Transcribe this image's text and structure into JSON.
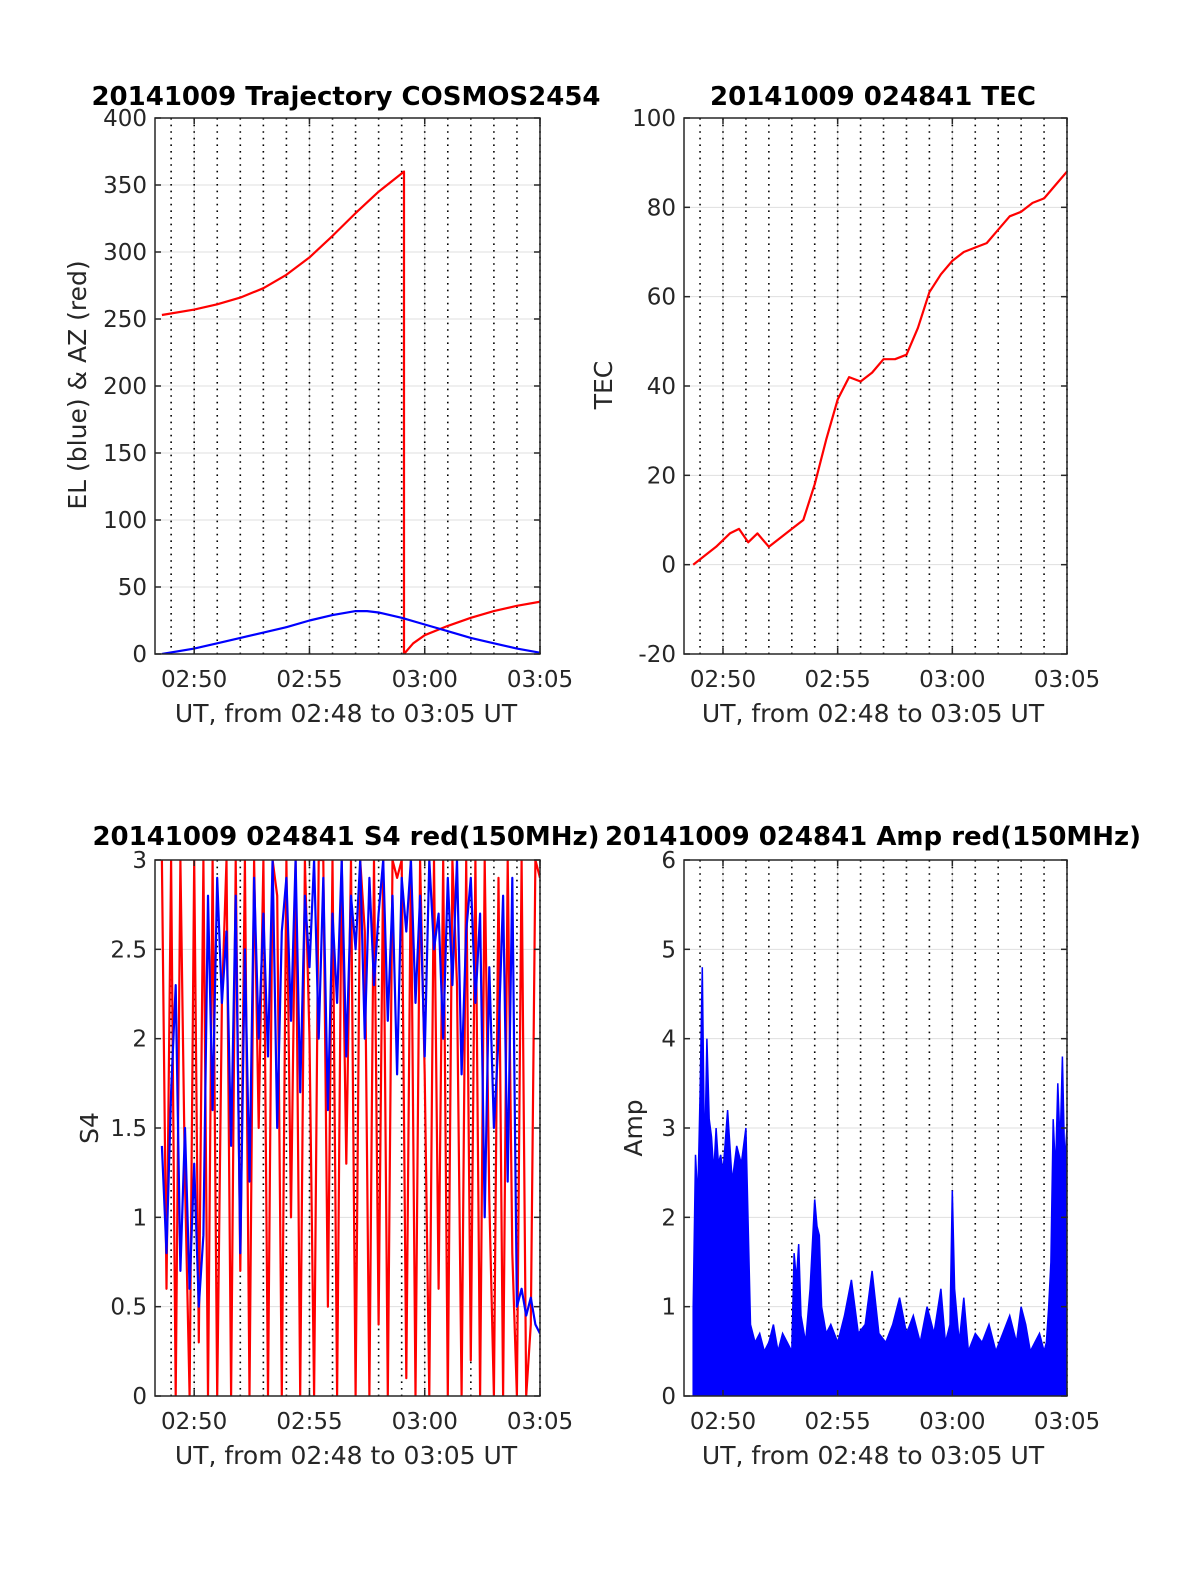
{
  "chart_data": [
    {
      "type": "line",
      "title": "20141009 Trajectory COSMOS2454",
      "xlabel": "UT, from 02:48 to 03:05 UT",
      "ylabel": "EL (blue) & AZ (red)",
      "xlim": [
        168.3,
        185
      ],
      "ylim": [
        0,
        400
      ],
      "xticks": [
        170,
        175,
        180,
        185
      ],
      "xticklabels": [
        "02:50",
        "02:55",
        "03:00",
        "03:05"
      ],
      "yticks": [
        0,
        50,
        100,
        150,
        200,
        250,
        300,
        350,
        400
      ],
      "yticklabels": [
        "0",
        "50",
        "100",
        "150",
        "200",
        "250",
        "300",
        "350",
        "400"
      ],
      "grid": true,
      "series": [
        {
          "color": "#ff0000",
          "x": [
            168.6,
            170,
            171,
            172,
            173,
            174,
            175,
            176,
            177,
            178,
            179.1,
            179.1,
            179.5,
            180,
            181,
            182,
            183,
            184,
            185
          ],
          "y": [
            253,
            257,
            261,
            266,
            273,
            283,
            296,
            312,
            329,
            345,
            360,
            0,
            8,
            14,
            21,
            27,
            32,
            36,
            39
          ]
        },
        {
          "color": "#0000ff",
          "x": [
            168.6,
            170,
            171,
            172,
            173,
            174,
            175,
            176,
            177,
            177.5,
            178,
            179,
            180,
            181,
            182,
            183,
            184,
            185
          ],
          "y": [
            0,
            4,
            8,
            12,
            16,
            20,
            25,
            29,
            32,
            32,
            31,
            27,
            22,
            17,
            12,
            8,
            4,
            1
          ]
        }
      ]
    },
    {
      "type": "line",
      "title": "20141009 024841 TEC",
      "xlabel": "UT, from 02:48 to 03:05 UT",
      "ylabel": "TEC",
      "xlim": [
        168.3,
        185
      ],
      "ylim": [
        -20,
        100
      ],
      "xticks": [
        170,
        175,
        180,
        185
      ],
      "xticklabels": [
        "02:50",
        "02:55",
        "03:00",
        "03:05"
      ],
      "yticks": [
        -20,
        0,
        20,
        40,
        60,
        80,
        100
      ],
      "yticklabels": [
        "-20",
        "0",
        "20",
        "40",
        "60",
        "80",
        "100"
      ],
      "grid": true,
      "series": [
        {
          "color": "#ff0000",
          "x": [
            168.7,
            169.2,
            169.7,
            170.3,
            170.7,
            171.1,
            171.5,
            172.0,
            172.5,
            173.0,
            173.5,
            174.0,
            174.5,
            175.0,
            175.5,
            176.0,
            176.5,
            177.0,
            177.5,
            178.0,
            178.5,
            179.0,
            179.5,
            180.0,
            180.5,
            181.0,
            181.5,
            182.0,
            182.5,
            183.0,
            183.5,
            184.0,
            184.5,
            185.0
          ],
          "y": [
            0,
            2,
            4,
            7,
            8,
            5,
            7,
            4,
            6,
            8,
            10,
            18,
            28,
            37,
            42,
            41,
            43,
            46,
            46,
            47,
            53,
            61,
            65,
            68,
            70,
            71,
            72,
            75,
            78,
            79,
            81,
            82,
            85,
            88
          ]
        }
      ]
    },
    {
      "type": "line",
      "title": "20141009 024841 S4 red(150MHz)",
      "xlabel": "UT, from 02:48 to 03:05 UT",
      "ylabel": "S4",
      "xlim": [
        168.3,
        185
      ],
      "ylim": [
        0,
        3
      ],
      "xticks": [
        170,
        175,
        180,
        185
      ],
      "xticklabels": [
        "02:50",
        "02:55",
        "03:00",
        "03:05"
      ],
      "yticks": [
        0,
        0.5,
        1,
        1.5,
        2,
        2.5,
        3
      ],
      "yticklabels": [
        "0",
        "0.5",
        "1",
        "1.5",
        "2",
        "2.5",
        "3"
      ],
      "grid": true,
      "series": [
        {
          "color": "#ff0000",
          "x": [
            168.6,
            168.8,
            169.0,
            169.2,
            169.4,
            169.6,
            169.8,
            170.0,
            170.2,
            170.4,
            170.6,
            170.8,
            171.0,
            171.2,
            171.4,
            171.6,
            171.8,
            172.0,
            172.2,
            172.4,
            172.6,
            172.8,
            173.0,
            173.2,
            173.4,
            173.6,
            173.8,
            174.0,
            174.2,
            174.4,
            174.6,
            174.8,
            175.0,
            175.2,
            175.4,
            175.6,
            175.8,
            176.0,
            176.2,
            176.4,
            176.6,
            176.8,
            177.0,
            177.2,
            177.4,
            177.6,
            177.8,
            178.0,
            178.2,
            178.4,
            178.6,
            178.8,
            179.0,
            179.2,
            179.4,
            179.6,
            179.8,
            180.0,
            180.2,
            180.4,
            180.6,
            180.8,
            181.0,
            181.2,
            181.4,
            181.6,
            181.8,
            182.0,
            182.2,
            182.4,
            182.6,
            182.8,
            183.0,
            183.2,
            183.4,
            183.6,
            183.8,
            184.0,
            184.2,
            184.4,
            184.6,
            184.8,
            185.0
          ],
          "y": [
            3,
            0.6,
            3,
            0,
            3,
            1.2,
            0,
            3,
            0.3,
            3,
            0,
            3,
            0,
            2.2,
            3,
            0,
            3,
            0.7,
            3,
            0,
            3,
            1.5,
            3,
            0,
            3,
            2.8,
            0,
            3,
            1.0,
            3,
            0,
            3,
            2.0,
            0,
            3,
            3,
            0.5,
            3,
            0,
            3,
            1.3,
            3,
            0,
            3,
            2.6,
            0,
            3,
            0.4,
            3,
            0,
            3,
            2.9,
            3,
            0.1,
            3,
            0,
            3,
            1.8,
            0,
            3,
            0.6,
            3,
            0,
            3,
            2.3,
            0,
            3,
            0.2,
            3,
            0,
            3,
            1.1,
            0,
            2.9,
            0,
            3,
            0.8,
            0,
            3,
            0,
            0.4,
            3,
            2.9
          ]
        },
        {
          "color": "#0000ff",
          "x": [
            168.6,
            168.8,
            169.0,
            169.2,
            169.4,
            169.6,
            169.8,
            170.0,
            170.2,
            170.4,
            170.6,
            170.8,
            171.0,
            171.2,
            171.4,
            171.6,
            171.8,
            172.0,
            172.2,
            172.4,
            172.6,
            172.8,
            173.0,
            173.2,
            173.4,
            173.6,
            173.8,
            174.0,
            174.2,
            174.4,
            174.6,
            174.8,
            175.0,
            175.2,
            175.4,
            175.6,
            175.8,
            176.0,
            176.2,
            176.4,
            176.6,
            176.8,
            177.0,
            177.2,
            177.4,
            177.6,
            177.8,
            178.0,
            178.2,
            178.4,
            178.6,
            178.8,
            179.0,
            179.2,
            179.4,
            179.6,
            179.8,
            180.0,
            180.2,
            180.4,
            180.6,
            180.8,
            181.0,
            181.2,
            181.4,
            181.6,
            181.8,
            182.0,
            182.2,
            182.4,
            182.6,
            182.8,
            183.0,
            183.2,
            183.4,
            183.6,
            183.8,
            184.0,
            184.2,
            184.4,
            184.6,
            184.8,
            185.0
          ],
          "y": [
            1.4,
            0.8,
            1.7,
            2.3,
            0.7,
            1.5,
            0.6,
            1.3,
            0.5,
            0.9,
            2.8,
            1.6,
            2.9,
            2.2,
            2.6,
            1.4,
            2.8,
            0.8,
            2.5,
            1.2,
            2.9,
            2.0,
            2.7,
            1.9,
            3.0,
            1.5,
            2.6,
            2.9,
            2.1,
            3.0,
            1.7,
            2.8,
            2.4,
            3.0,
            2.0,
            2.9,
            1.6,
            2.7,
            2.2,
            3.0,
            1.9,
            2.8,
            2.5,
            3.0,
            2.0,
            2.9,
            2.3,
            2.7,
            3.0,
            2.1,
            2.8,
            1.8,
            2.9,
            2.6,
            3.0,
            2.2,
            2.8,
            1.9,
            3.0,
            2.5,
            2.7,
            2.0,
            2.9,
            2.3,
            3.0,
            1.8,
            2.6,
            2.9,
            2.2,
            2.7,
            1.0,
            2.4,
            1.5,
            2.0,
            2.8,
            1.2,
            2.9,
            0.5,
            0.6,
            0.45,
            0.55,
            0.4,
            0.35
          ]
        }
      ]
    },
    {
      "type": "line",
      "title": "20141009 024841 Amp red(150MHz)",
      "xlabel": "UT, from 02:48 to 03:05 UT",
      "ylabel": "Amp",
      "xlim": [
        168.3,
        185
      ],
      "ylim": [
        0,
        6
      ],
      "xticks": [
        170,
        175,
        180,
        185
      ],
      "xticklabels": [
        "02:50",
        "02:55",
        "03:00",
        "03:05"
      ],
      "yticks": [
        0,
        1,
        2,
        3,
        4,
        5,
        6
      ],
      "yticklabels": [
        "0",
        "1",
        "2",
        "3",
        "4",
        "5",
        "6"
      ],
      "grid": true,
      "series": [
        {
          "color": "#0000ff",
          "fill_to_zero": true,
          "x": [
            168.7,
            168.8,
            168.9,
            169.0,
            169.1,
            169.2,
            169.3,
            169.4,
            169.5,
            169.6,
            169.7,
            169.8,
            169.9,
            170.0,
            170.2,
            170.4,
            170.6,
            170.8,
            171.0,
            171.2,
            171.4,
            171.6,
            171.8,
            172.0,
            172.2,
            172.4,
            172.6,
            172.8,
            173.0,
            173.1,
            173.2,
            173.3,
            173.4,
            173.6,
            173.8,
            174.0,
            174.1,
            174.2,
            174.3,
            174.5,
            174.7,
            175.0,
            175.3,
            175.6,
            175.9,
            176.2,
            176.5,
            176.8,
            177.1,
            177.4,
            177.7,
            178.0,
            178.3,
            178.6,
            178.9,
            179.2,
            179.5,
            179.7,
            179.9,
            180.0,
            180.1,
            180.3,
            180.5,
            180.7,
            181.0,
            181.3,
            181.6,
            181.9,
            182.2,
            182.5,
            182.8,
            183.0,
            183.2,
            183.4,
            183.6,
            183.8,
            184.0,
            184.1,
            184.2,
            184.3,
            184.4,
            184.5,
            184.6,
            184.7,
            184.8,
            184.9,
            185.0
          ],
          "y": [
            1.0,
            2.7,
            2.2,
            3.4,
            4.8,
            2.6,
            4.0,
            3.1,
            2.9,
            2.5,
            3.0,
            2.6,
            2.7,
            2.5,
            3.2,
            2.4,
            2.8,
            2.6,
            3.0,
            0.8,
            0.6,
            0.7,
            0.5,
            0.6,
            0.8,
            0.5,
            0.7,
            0.6,
            0.5,
            1.6,
            1.3,
            1.7,
            0.9,
            0.6,
            1.2,
            2.2,
            1.9,
            1.8,
            1.0,
            0.7,
            0.8,
            0.6,
            0.9,
            1.3,
            0.7,
            0.8,
            1.4,
            0.7,
            0.6,
            0.8,
            1.1,
            0.7,
            0.9,
            0.6,
            1.0,
            0.7,
            1.2,
            0.6,
            0.8,
            2.3,
            1.2,
            0.6,
            1.1,
            0.5,
            0.7,
            0.6,
            0.8,
            0.5,
            0.7,
            0.9,
            0.6,
            1.0,
            0.8,
            0.5,
            0.6,
            0.7,
            0.5,
            0.6,
            1.0,
            1.5,
            3.1,
            2.5,
            3.5,
            2.8,
            3.8,
            2.6,
            3.0
          ]
        }
      ]
    }
  ]
}
